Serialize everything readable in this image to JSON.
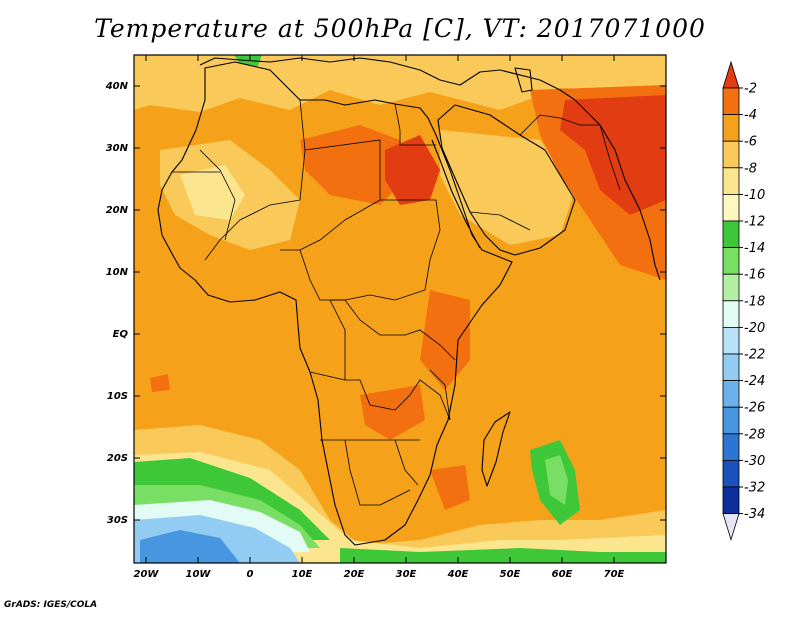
{
  "map": {
    "title": "Temperature at 500hPa [C], VT: 2017071000",
    "credit": "GrADS: IGES/COLA",
    "lat_labels": [
      "40N",
      "30N",
      "20N",
      "10N",
      "EQ",
      "10S",
      "20S",
      "30S"
    ],
    "lon_labels": [
      "20W",
      "10W",
      "0",
      "10E",
      "20E",
      "30E",
      "40E",
      "50E",
      "60E",
      "70E"
    ],
    "colorbar_labels": [
      "-2",
      "-4",
      "-6",
      "-8",
      "-10",
      "-12",
      "-14",
      "-16",
      "-18",
      "-20",
      "-22",
      "-24",
      "-26",
      "-28",
      "-30",
      "-32",
      "-34"
    ],
    "colorbar_colors": [
      "#e23c12",
      "#f27010",
      "#f5a21a",
      "#f9c95a",
      "#fbe68f",
      "#fff7c0",
      "#3fc73a",
      "#78df64",
      "#b2efa3",
      "#e2fbf4",
      "#b9e2f8",
      "#92ccf2",
      "#6cb2ea",
      "#4896e0",
      "#2d75d2",
      "#1a52bd",
      "#0c2f9c",
      "#0a1878"
    ],
    "colors": {
      "base": "#f5a21a",
      "warm": "#f27010",
      "hot": "#e23c12",
      "mild": "#f9c95a",
      "pale": "#fbe68f",
      "green": "#3fc73a",
      "lightgreen": "#78df64",
      "cyan": "#e2fbf4",
      "lightblue": "#92ccf2",
      "blue": "#4896e0"
    }
  }
}
